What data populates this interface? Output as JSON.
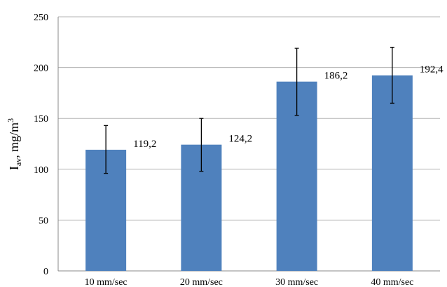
{
  "chart_data": {
    "type": "bar",
    "categories": [
      "10 mm/sec",
      "20 mm/sec",
      "30 mm/sec",
      "40 mm/sec"
    ],
    "values": [
      119.2,
      124.2,
      186.2,
      192.4
    ],
    "value_labels": [
      "119,2",
      "124,2",
      "186,2",
      "192,4"
    ],
    "error_low": [
      96,
      98,
      153,
      165
    ],
    "error_high": [
      143,
      150,
      219,
      220
    ],
    "ylabel": {
      "main": "I",
      "sub": "av",
      "rest": ", mg/m",
      "sup": "3"
    },
    "xlabel": "",
    "ylim": [
      0,
      250
    ],
    "yticks": [
      0,
      50,
      100,
      150,
      200,
      250
    ],
    "grid": true,
    "bar_color": "#4f81bd"
  }
}
